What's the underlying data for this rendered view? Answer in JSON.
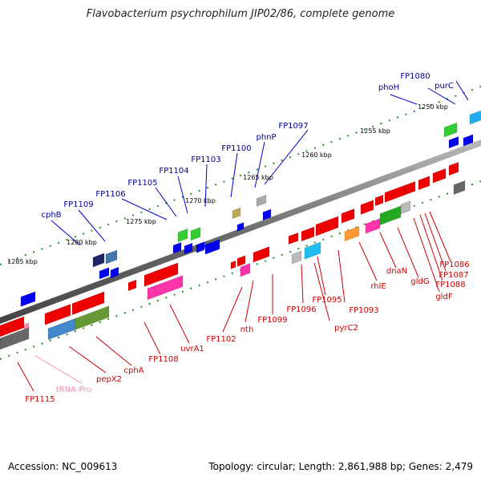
{
  "title": "Flavobacterium psychrophilum JIP02/86, complete genome",
  "footer": {
    "accession": "Accession: NC_009613",
    "topology": "Topology: circular; Length: 2,861,988 bp; Genes: 2,479"
  },
  "tick_labels": [
    "1250 kbp",
    "1255 kbp",
    "1260 kbp",
    "1265 kbp",
    "1270 kbp",
    "1275 kbp",
    "1280 kbp",
    "1285 kbp"
  ],
  "forward_genes": [
    "purC",
    "FP1080",
    "phoH",
    "FP1097",
    "phnP",
    "FP1100",
    "FP1103",
    "FP1104",
    "FP1105",
    "FP1106",
    "FP1109",
    "cphB"
  ],
  "reverse_genes": [
    "FP1086",
    "FP1087",
    "FP1088",
    "gldF",
    "gldG",
    "dnaN",
    "rhlE",
    "FP1093",
    "pyrC2",
    "FP1095",
    "FP1096",
    "FP1099",
    "nth",
    "FP1102",
    "uvrA1",
    "FP1108",
    "cphA",
    "pepX2",
    "tRNA-Pro",
    "FP1115"
  ],
  "colors": {
    "forward_label": "#000099",
    "reverse_label": "#cc0000",
    "trna_label": "#ff88bb",
    "backbone": "#777777"
  }
}
